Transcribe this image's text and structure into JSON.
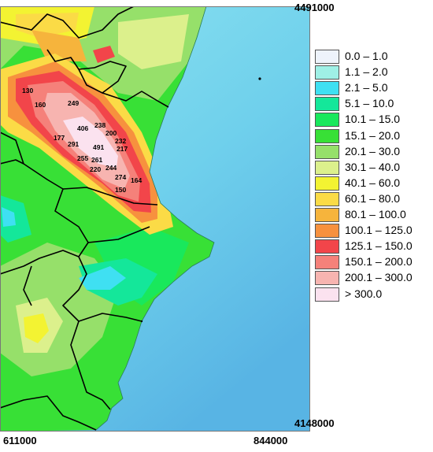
{
  "coordinates": {
    "top_right": "4491000",
    "bottom_right": "4148000",
    "bottom_left": "611000",
    "bottom_center": "844000"
  },
  "legend": [
    {
      "label": "0.0 – 1.0",
      "color": "#eef3fb"
    },
    {
      "label": "1.1 – 2.0",
      "color": "#9ff0e6"
    },
    {
      "label": "2.1 – 5.0",
      "color": "#3fe0f2"
    },
    {
      "label": "5.1 – 10.0",
      "color": "#14e79a"
    },
    {
      "label": "10.1 – 15.0",
      "color": "#19e85c"
    },
    {
      "label": "15.1 – 20.0",
      "color": "#38e036"
    },
    {
      "label": "20.1 – 30.0",
      "color": "#96e06a"
    },
    {
      "label": "30.1 – 40.0",
      "color": "#dcf08c"
    },
    {
      "label": "40.1 – 60.0",
      "color": "#f3f332"
    },
    {
      "label": "60.1 – 80.0",
      "color": "#fbdb46"
    },
    {
      "label": "80.1 – 100.0",
      "color": "#f6b43c"
    },
    {
      "label": "100.1 – 125.0",
      "color": "#f7913e"
    },
    {
      "label": "125.1 – 150.0",
      "color": "#f2454a"
    },
    {
      "label": "150.1 – 200.0",
      "color": "#f5817a"
    },
    {
      "label": "200.1 – 300.0",
      "color": "#f7b4b0"
    },
    {
      "label": "> 300.0",
      "color": "#fbe2ef"
    }
  ],
  "map_values": [
    "130",
    "160",
    "249",
    "406",
    "238",
    "200",
    "177",
    "291",
    "491",
    "232",
    "217",
    "255",
    "261",
    "220",
    "244",
    "274",
    "164",
    "150"
  ],
  "colors": {
    "sea": "#77d7ea",
    "deep_sea": "#5ab8e4",
    "border_line": "#000000"
  }
}
